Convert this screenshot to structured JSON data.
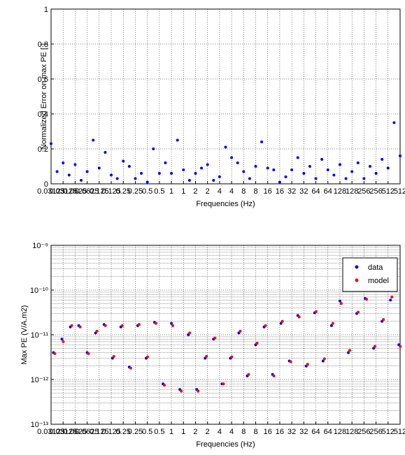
{
  "chart_data": [
    {
      "type": "scatter",
      "ylabel": "Normalized Error on max PE [ ]",
      "xlabel": "Frequencies (Hz)",
      "color": "#0000ff",
      "grid": true,
      "x": [
        0,
        0.5,
        1,
        1.5,
        2,
        2.5,
        3,
        3.5,
        4,
        4.5,
        5,
        5.5,
        6,
        6.5,
        7,
        7.5,
        8,
        8.5,
        9,
        9.5,
        10,
        10.5,
        11,
        11.5,
        12,
        12.5,
        13,
        13.5,
        14,
        14.5,
        15,
        15.5,
        16,
        16.5,
        17,
        17.5,
        18,
        18.5,
        19,
        19.5,
        20,
        20.5,
        21,
        21.5,
        22,
        22.5,
        23,
        23.5,
        24,
        24.5,
        25,
        25.5,
        26,
        26.5,
        27,
        27.5,
        28,
        28.5,
        29
      ],
      "values": [
        0.23,
        0.07,
        0.12,
        0.05,
        0.11,
        0.02,
        0.07,
        0.25,
        0.09,
        0.18,
        0.05,
        0.03,
        0.13,
        0.1,
        0.03,
        0.06,
        0.01,
        0.2,
        0.06,
        0.12,
        0.06,
        0.25,
        0.08,
        0.02,
        0.06,
        0.09,
        0.11,
        0.02,
        0.04,
        0.21,
        0.15,
        0.12,
        0.07,
        0.03,
        0.1,
        0.24,
        0.09,
        0.08,
        0.01,
        0.04,
        0.08,
        0.15,
        0.06,
        0.1,
        0.03,
        0.14,
        0.08,
        0.05,
        0.11,
        0.03,
        0.07,
        0.12,
        0.03,
        0.1,
        0.06,
        0.14,
        0.09,
        0.35,
        0.16
      ],
      "xlim": [
        0,
        29
      ],
      "xticks": [
        {
          "value": 0,
          "label": "0.03125"
        },
        {
          "value": 1,
          "label": "0.03125"
        },
        {
          "value": 2,
          "label": "0.0625"
        },
        {
          "value": 3,
          "label": "0.0625"
        },
        {
          "value": 4,
          "label": "0.125"
        },
        {
          "value": 5,
          "label": "0.125"
        },
        {
          "value": 6,
          "label": "0.25"
        },
        {
          "value": 7,
          "label": "0.25"
        },
        {
          "value": 8,
          "label": "0.5"
        },
        {
          "value": 9,
          "label": "0.5"
        },
        {
          "value": 10,
          "label": "1"
        },
        {
          "value": 11,
          "label": "1"
        },
        {
          "value": 12,
          "label": "2"
        },
        {
          "value": 13,
          "label": "2"
        },
        {
          "value": 14,
          "label": "4"
        },
        {
          "value": 15,
          "label": "4"
        },
        {
          "value": 16,
          "label": "8"
        },
        {
          "value": 17,
          "label": "8"
        },
        {
          "value": 18,
          "label": "16"
        },
        {
          "value": 19,
          "label": "16"
        },
        {
          "value": 20,
          "label": "32"
        },
        {
          "value": 21,
          "label": "32"
        },
        {
          "value": 22,
          "label": "64"
        },
        {
          "value": 23,
          "label": "64"
        },
        {
          "value": 24,
          "label": "128"
        },
        {
          "value": 25,
          "label": "128"
        },
        {
          "value": 26,
          "label": "256"
        },
        {
          "value": 27,
          "label": "256"
        },
        {
          "value": 28,
          "label": "512"
        },
        {
          "value": 29,
          "label": "512"
        }
      ],
      "ylim": [
        0,
        1
      ],
      "yticks": [
        0,
        0.2,
        0.4,
        0.6,
        0.8,
        1
      ]
    },
    {
      "type": "scatter",
      "ylabel": "Max PE (V/A.m2)",
      "xlabel": "Frequencies (Hz)",
      "log_y": true,
      "grid": true,
      "legend": "northeast",
      "x": [
        0.2,
        0.9,
        1.6,
        2.3,
        3.0,
        3.7,
        4.4,
        5.1,
        5.8,
        6.5,
        7.2,
        7.9,
        8.6,
        9.3,
        10.0,
        10.7,
        11.4,
        12.1,
        12.8,
        13.5,
        14.2,
        14.9,
        15.6,
        16.3,
        17.0,
        17.7,
        18.4,
        19.1,
        19.8,
        20.5,
        21.2,
        21.9,
        22.6,
        23.3,
        24.0,
        24.7,
        25.4,
        26.1,
        26.8,
        27.5,
        28.2,
        28.9
      ],
      "series": [
        {
          "name": "data",
          "color": "#0000ff",
          "values": [
            4e-12,
            8e-12,
            1.5e-11,
            1.6e-11,
            4e-12,
            1.1e-11,
            1.7e-11,
            3e-12,
            1.5e-11,
            1.9e-12,
            1.6e-11,
            3e-12,
            1.9e-11,
            8e-13,
            1.8e-11,
            6e-13,
            1e-11,
            6e-13,
            3e-12,
            8e-12,
            8e-13,
            3e-12,
            1.1e-11,
            1.2e-12,
            6e-12,
            1.5e-11,
            1.3e-12,
            1.8e-11,
            2.6e-12,
            2.7e-11,
            2e-12,
            3.1e-11,
            2.6e-12,
            1.6e-11,
            5.7e-11,
            4e-12,
            3e-11,
            6.5e-11,
            5e-12,
            2e-11,
            6e-11,
            6e-12
          ]
        },
        {
          "name": "model",
          "color": "#ff0000",
          "values": [
            3.8e-12,
            7e-12,
            1.6e-11,
            1.5e-11,
            3.8e-12,
            1.2e-11,
            1.6e-11,
            3.3e-12,
            1.6e-11,
            1.8e-12,
            1.7e-11,
            3.2e-12,
            1.8e-11,
            7.5e-13,
            1.6e-11,
            5.5e-13,
            1.1e-11,
            5.5e-13,
            3.3e-12,
            8.5e-12,
            8e-13,
            3.2e-12,
            1.2e-11,
            1.3e-12,
            6.5e-12,
            1.6e-11,
            1.2e-12,
            2e-11,
            2.5e-12,
            2.5e-11,
            2.2e-12,
            3.3e-11,
            2.9e-12,
            1.8e-11,
            5e-11,
            4.5e-12,
            3.2e-11,
            6.2e-11,
            5.5e-12,
            2.2e-11,
            7e-11,
            5.5e-12
          ]
        }
      ],
      "xlim": [
        0,
        29
      ],
      "xticks": [
        {
          "value": 0,
          "label": "0.03125"
        },
        {
          "value": 1,
          "label": "0.03125"
        },
        {
          "value": 2,
          "label": "0.0625"
        },
        {
          "value": 3,
          "label": "0.0625"
        },
        {
          "value": 4,
          "label": "0.125"
        },
        {
          "value": 5,
          "label": "0.125"
        },
        {
          "value": 6,
          "label": "0.25"
        },
        {
          "value": 7,
          "label": "0.25"
        },
        {
          "value": 8,
          "label": "0.5"
        },
        {
          "value": 9,
          "label": "0.5"
        },
        {
          "value": 10,
          "label": "1"
        },
        {
          "value": 11,
          "label": "1"
        },
        {
          "value": 12,
          "label": "2"
        },
        {
          "value": 13,
          "label": "2"
        },
        {
          "value": 14,
          "label": "4"
        },
        {
          "value": 15,
          "label": "4"
        },
        {
          "value": 16,
          "label": "8"
        },
        {
          "value": 17,
          "label": "8"
        },
        {
          "value": 18,
          "label": "16"
        },
        {
          "value": 19,
          "label": "16"
        },
        {
          "value": 20,
          "label": "32"
        },
        {
          "value": 21,
          "label": "32"
        },
        {
          "value": 22,
          "label": "64"
        },
        {
          "value": 23,
          "label": "64"
        },
        {
          "value": 24,
          "label": "128"
        },
        {
          "value": 25,
          "label": "128"
        },
        {
          "value": 26,
          "label": "256"
        },
        {
          "value": 27,
          "label": "256"
        },
        {
          "value": 28,
          "label": "512"
        },
        {
          "value": 29,
          "label": "512"
        }
      ],
      "ylim": [
        1e-13,
        1e-09
      ],
      "yticks": [
        {
          "value": 1e-13,
          "label": "10⁻¹³"
        },
        {
          "value": 1e-12,
          "label": "10⁻¹²"
        },
        {
          "value": 1e-11,
          "label": "10⁻¹¹"
        },
        {
          "value": 1e-10,
          "label": "10⁻¹⁰"
        },
        {
          "value": 1e-09,
          "label": "10⁻⁹"
        }
      ]
    }
  ]
}
